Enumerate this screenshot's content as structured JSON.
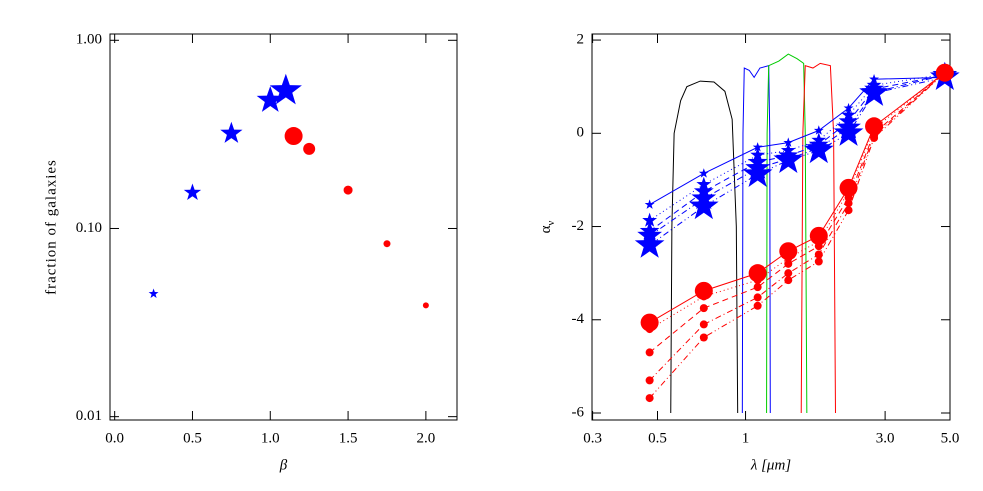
{
  "chart_data": [
    {
      "type": "scatter",
      "xlabel": "β",
      "ylabel": "fraction of galaxies",
      "xlim": [
        -0.03,
        2.2
      ],
      "ylim": [
        0.0096,
        1.08
      ],
      "ylog": true,
      "xticks": [
        {
          "value": 0,
          "label": "0.0"
        },
        0.5,
        {
          "value": 1,
          "label": "1.0"
        },
        1.5,
        {
          "value": 2,
          "label": "2.0"
        }
      ],
      "yticks": [
        {
          "value": 0.01,
          "label": "0.01"
        },
        {
          "value": 0.1,
          "label": "0.10"
        },
        {
          "value": 1,
          "label": "1.00"
        }
      ],
      "series": [
        {
          "color": "#0000ff",
          "marker": "star",
          "x": [
            0.25,
            0.5,
            0.75,
            1.0,
            1.1
          ],
          "values": [
            0.045,
            0.155,
            0.32,
            0.48,
            0.54
          ],
          "marker_sizes": [
            4,
            7,
            9,
            11,
            13
          ]
        },
        {
          "color": "#ff0000",
          "marker": "circle",
          "x": [
            1.15,
            1.25,
            1.5,
            1.75,
            2.0
          ],
          "values": [
            0.31,
            0.265,
            0.16,
            0.083,
            0.039
          ],
          "marker_sizes": [
            9,
            6,
            4.5,
            3.5,
            3
          ]
        }
      ]
    },
    {
      "type": "line",
      "xlabel": "λ  [μm]",
      "ylabel": "α",
      "ylabel_sub": "ν",
      "xlim": [
        0.2986,
        5.0
      ],
      "ylim": [
        -6.15,
        2.13
      ],
      "xlog": true,
      "xticks": [
        0.3,
        0.5,
        1,
        {
          "value": 3,
          "label": "3.0"
        },
        {
          "value": 5,
          "label": "5.0"
        }
      ],
      "yticks": [
        -6,
        -4,
        -2,
        0,
        2
      ],
      "x": [
        0.47,
        0.72,
        1.1,
        1.4,
        1.78,
        2.25,
        2.75,
        4.8
      ],
      "curves": [
        {
          "color": "#000000",
          "x": [
            0.555,
            0.56,
            0.57,
            0.6,
            0.63,
            0.7,
            0.78,
            0.85,
            0.9,
            0.93,
            0.94
          ],
          "values": [
            -6,
            -2,
            0,
            0.7,
            1.0,
            1.12,
            1.1,
            0.9,
            0.3,
            -2,
            -6
          ]
        },
        {
          "color": "#0000ff",
          "x": [
            0.975,
            0.98,
            0.99,
            1.03,
            1.07,
            1.12,
            1.2,
            1.21,
            1.215
          ],
          "values": [
            -6,
            0,
            1.4,
            1.35,
            1.2,
            1.4,
            1.45,
            0,
            -6
          ]
        },
        {
          "color": "#00cc00",
          "x": [
            1.18,
            1.185,
            1.2,
            1.3,
            1.4,
            1.5,
            1.58,
            1.6,
            1.62
          ],
          "values": [
            -6,
            0,
            1.45,
            1.55,
            1.7,
            1.6,
            1.5,
            0,
            -6
          ]
        },
        {
          "color": "#ff0000",
          "x": [
            1.55,
            1.57,
            1.6,
            1.7,
            1.8,
            1.95,
            2.0,
            2.03
          ],
          "values": [
            -6,
            0,
            1.45,
            1.4,
            1.5,
            1.45,
            0,
            -6
          ]
        }
      ],
      "series": [
        {
          "color": "#0000ff",
          "marker": "star",
          "marker_size": 4,
          "dash": "solid",
          "values": [
            -1.53,
            -0.86,
            -0.3,
            -0.2,
            0.06,
            0.54,
            1.16,
            1.2
          ]
        },
        {
          "color": "#0000ff",
          "marker": "star",
          "marker_size": 6,
          "dash": "dotted",
          "values": [
            -1.87,
            -1.1,
            -0.47,
            -0.37,
            -0.15,
            0.39,
            1.03,
            1.27
          ]
        },
        {
          "color": "#0000ff",
          "marker": "star",
          "marker_size": 8,
          "dash": "dashed",
          "values": [
            -2.1,
            -1.25,
            -0.62,
            -0.48,
            -0.25,
            0.25,
            0.95,
            1.25
          ]
        },
        {
          "color": "#0000ff",
          "marker": "star",
          "marker_size": 10,
          "dash": "dashdot",
          "values": [
            -2.2,
            -1.4,
            -0.75,
            -0.55,
            -0.32,
            0.12,
            0.88,
            1.25
          ]
        },
        {
          "color": "#0000ff",
          "marker": "star",
          "marker_size": 12,
          "dash": "dashdotdot",
          "values": [
            -2.4,
            -1.57,
            -0.88,
            -0.58,
            -0.37,
            0.0,
            0.86,
            1.2
          ]
        },
        {
          "color": "#ff0000",
          "marker": "circle",
          "marker_size": 9,
          "dash": "solid",
          "values": [
            -4.06,
            -3.38,
            -3.0,
            -2.53,
            -2.2,
            -1.17,
            0.15,
            1.3
          ]
        },
        {
          "color": "#ff0000",
          "marker": "circle",
          "marker_size": 4,
          "dash": "dotted",
          "values": [
            -4.2,
            -3.5,
            -3.15,
            -2.68,
            -2.32,
            -1.25,
            0.1,
            1.3
          ]
        },
        {
          "color": "#ff0000",
          "marker": "circle",
          "marker_size": 4,
          "dash": "dashed",
          "values": [
            -4.7,
            -3.75,
            -3.3,
            -2.8,
            -2.42,
            -1.38,
            0.0,
            1.3
          ]
        },
        {
          "color": "#ff0000",
          "marker": "circle",
          "marker_size": 4,
          "dash": "dashdot",
          "values": [
            -5.3,
            -4.1,
            -3.52,
            -3.0,
            -2.6,
            -1.5,
            -0.05,
            1.3
          ]
        },
        {
          "color": "#ff0000",
          "marker": "circle",
          "marker_size": 4,
          "dash": "dashdotdot",
          "values": [
            -5.68,
            -4.38,
            -3.7,
            -3.15,
            -2.75,
            -1.65,
            -0.1,
            1.3
          ]
        }
      ]
    }
  ]
}
